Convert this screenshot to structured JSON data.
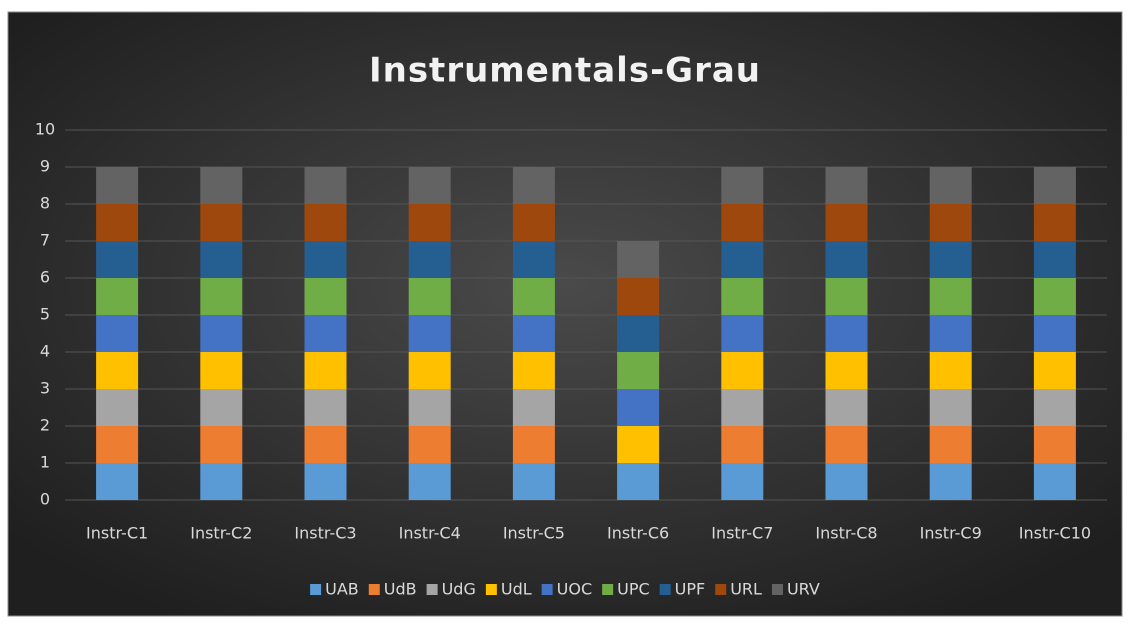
{
  "chart_data": {
    "type": "stacked_bar",
    "title": "Instrumentals-Grau",
    "categories": [
      "Instr-C1",
      "Instr-C2",
      "Instr-C3",
      "Instr-C4",
      "Instr-C5",
      "Instr-C6",
      "Instr-C7",
      "Instr-C8",
      "Instr-C9",
      "Instr-C10"
    ],
    "series": [
      {
        "name": "UAB",
        "color": "#5b9bd5",
        "values": [
          1,
          1,
          1,
          1,
          1,
          1,
          1,
          1,
          1,
          1
        ]
      },
      {
        "name": "UdB",
        "color": "#ed7d31",
        "values": [
          1,
          1,
          1,
          1,
          1,
          0,
          1,
          1,
          1,
          1
        ]
      },
      {
        "name": "UdG",
        "color": "#a5a5a5",
        "values": [
          1,
          1,
          1,
          1,
          1,
          0,
          1,
          1,
          1,
          1
        ]
      },
      {
        "name": "UdL",
        "color": "#ffc000",
        "values": [
          1,
          1,
          1,
          1,
          1,
          1,
          1,
          1,
          1,
          1
        ]
      },
      {
        "name": "UOC",
        "color": "#4472c4",
        "values": [
          1,
          1,
          1,
          1,
          1,
          1,
          1,
          1,
          1,
          1
        ]
      },
      {
        "name": "UPC",
        "color": "#70ad47",
        "values": [
          1,
          1,
          1,
          1,
          1,
          1,
          1,
          1,
          1,
          1
        ]
      },
      {
        "name": "UPF",
        "color": "#255e91",
        "values": [
          1,
          1,
          1,
          1,
          1,
          1,
          1,
          1,
          1,
          1
        ]
      },
      {
        "name": "URL",
        "color": "#9e480e",
        "values": [
          1,
          1,
          1,
          1,
          1,
          1,
          1,
          1,
          1,
          1
        ]
      },
      {
        "name": "URV",
        "color": "#636363",
        "values": [
          1,
          1,
          1,
          1,
          1,
          1,
          1,
          1,
          1,
          1
        ]
      }
    ],
    "ylim": [
      0,
      10
    ],
    "yticks": [
      0,
      1,
      2,
      3,
      4,
      5,
      6,
      7,
      8,
      9,
      10
    ],
    "grid": true,
    "legend": "bottom"
  }
}
